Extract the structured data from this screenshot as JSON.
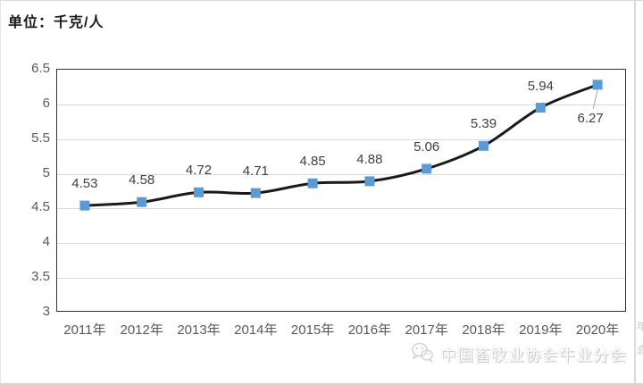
{
  "chart_data": {
    "type": "line",
    "unit_label": "单位：千克/人",
    "categories": [
      "2011年",
      "2012年",
      "2013年",
      "2014年",
      "2015年",
      "2016年",
      "2017年",
      "2018年",
      "2019年",
      "2020年"
    ],
    "values": [
      4.53,
      4.58,
      4.72,
      4.71,
      4.85,
      4.88,
      5.06,
      5.39,
      5.94,
      6.27
    ],
    "ylim": [
      3,
      6.5
    ],
    "ytick_step": 0.5,
    "grid": true,
    "legend": "none",
    "colors": {
      "line": "#1a1a1a",
      "marker": "#5b9bd5",
      "gridline": "#d9d9d9",
      "axis_text": "#595959",
      "data_label": "#404040",
      "leader_line": "#a6a6a6"
    }
  },
  "watermark": {
    "icon": "wechat-icon",
    "text": "中国畜牧业协会牛业分会"
  },
  "page_edge": {
    "fragments": [
      "年",
      "会"
    ]
  }
}
